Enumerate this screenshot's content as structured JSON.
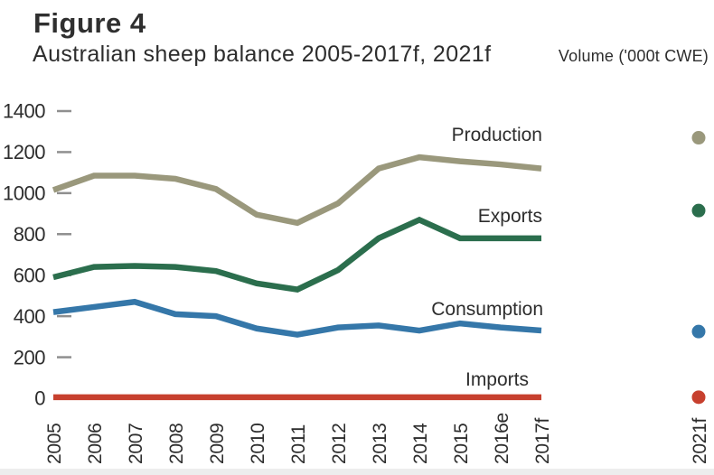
{
  "figure": {
    "label": "Figure 4",
    "title": "Australian sheep balance 2005-2017f, 2021f",
    "units_label": "Volume ('000t CWE)"
  },
  "chart_data": {
    "type": "line",
    "title": "Australian sheep balance 2005-2017f, 2021f",
    "ylabel": "Volume ('000t CWE)",
    "categories": [
      "2005",
      "2006",
      "2007",
      "2008",
      "2009",
      "2010",
      "2011",
      "2012",
      "2013",
      "2014",
      "2015",
      "2016e",
      "2017f"
    ],
    "forecast_category": "2021f",
    "ylim": [
      0,
      1400
    ],
    "yticks": [
      0,
      200,
      400,
      600,
      800,
      1000,
      1200,
      1400
    ],
    "grid": false,
    "legend_position": "inline-labels-near-line-end",
    "axis_text_color": "#2d2d2d",
    "tick_color": "#8f8f8f",
    "series": [
      {
        "name": "Production",
        "color": "#9a987c",
        "values": [
          1015,
          1085,
          1085,
          1070,
          1020,
          895,
          855,
          950,
          1120,
          1175,
          1155,
          1140,
          1120
        ],
        "value_2021f": 1270
      },
      {
        "name": "Exports",
        "color": "#2b6e4d",
        "values": [
          590,
          640,
          645,
          640,
          620,
          560,
          530,
          625,
          780,
          870,
          780,
          780,
          780
        ],
        "value_2021f": 915
      },
      {
        "name": "Consumption",
        "color": "#3577a9",
        "values": [
          420,
          445,
          470,
          410,
          400,
          340,
          310,
          345,
          355,
          330,
          365,
          345,
          330
        ],
        "value_2021f": 325
      },
      {
        "name": "Imports",
        "color": "#c7402e",
        "values": [
          5,
          5,
          5,
          5,
          5,
          5,
          5,
          5,
          5,
          5,
          5,
          5,
          5
        ],
        "value_2021f": 5
      }
    ]
  }
}
